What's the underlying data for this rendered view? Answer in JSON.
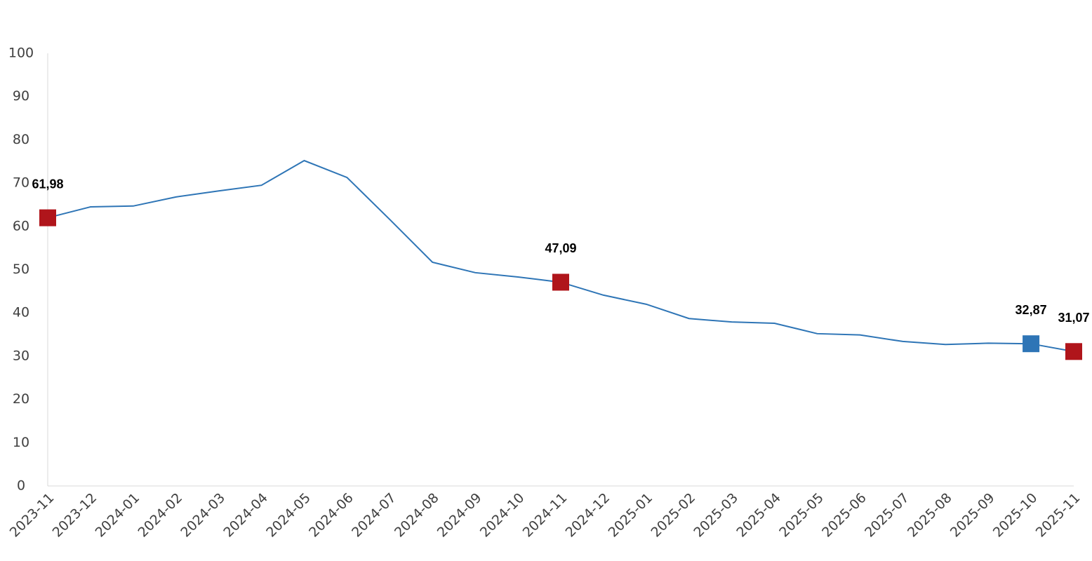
{
  "chart_data": {
    "type": "line",
    "categories": [
      "2023-11",
      "2023-12",
      "2024-01",
      "2024-02",
      "2024-03",
      "2024-04",
      "2024-05",
      "2024-06",
      "2024-07",
      "2024-08",
      "2024-09",
      "2024-10",
      "2024-11",
      "2024-12",
      "2025-01",
      "2025-02",
      "2025-03",
      "2025-04",
      "2025-05",
      "2025-06",
      "2025-07",
      "2025-08",
      "2025-09",
      "2025-10",
      "2025-11"
    ],
    "values": [
      61.98,
      64.5,
      64.7,
      66.8,
      68.2,
      69.5,
      75.2,
      71.3,
      61.6,
      51.7,
      49.3,
      48.3,
      47.09,
      44.1,
      42.0,
      38.7,
      37.9,
      37.6,
      35.2,
      34.9,
      33.4,
      32.7,
      33.0,
      32.87,
      31.07
    ],
    "value_labels": [
      "61,98",
      null,
      null,
      null,
      null,
      null,
      null,
      null,
      null,
      null,
      null,
      null,
      "47,09",
      null,
      null,
      null,
      null,
      null,
      null,
      null,
      null,
      null,
      null,
      "32,87",
      "31,07"
    ],
    "marker_colors": [
      "#b0151b",
      null,
      null,
      null,
      null,
      null,
      null,
      null,
      null,
      null,
      null,
      null,
      "#b0151b",
      null,
      null,
      null,
      null,
      null,
      null,
      null,
      null,
      null,
      null,
      "#2e75b6",
      "#b0151b"
    ],
    "color": "#2e75b6",
    "ylim": [
      0,
      100
    ],
    "yticks": [
      0,
      10,
      20,
      30,
      40,
      50,
      60,
      70,
      80,
      90,
      100
    ],
    "grid": false
  }
}
